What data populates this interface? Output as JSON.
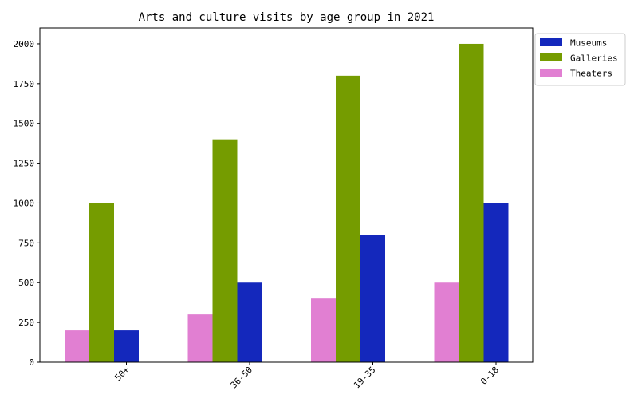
{
  "chart_data": {
    "type": "bar",
    "title": "Arts and culture visits by age group in 2021",
    "xlabel": "",
    "ylabel": "",
    "categories": [
      "50+",
      "36-50",
      "19-35",
      "0-18"
    ],
    "series": [
      {
        "name": "Theaters",
        "values": [
          200,
          300,
          400,
          500
        ],
        "color": "#e17fd2"
      },
      {
        "name": "Galleries",
        "values": [
          1000,
          1400,
          1800,
          2000
        ],
        "color": "#759c00"
      },
      {
        "name": "Museums",
        "values": [
          200,
          500,
          800,
          1000
        ],
        "color": "#1428bc"
      }
    ],
    "legend_order": [
      "Museums",
      "Galleries",
      "Theaters"
    ],
    "ylim": [
      0,
      2100
    ],
    "yticks": [
      0,
      250,
      500,
      750,
      1000,
      1250,
      1500,
      1750,
      2000
    ],
    "grid": false,
    "legend_position": "outside-top-right"
  }
}
